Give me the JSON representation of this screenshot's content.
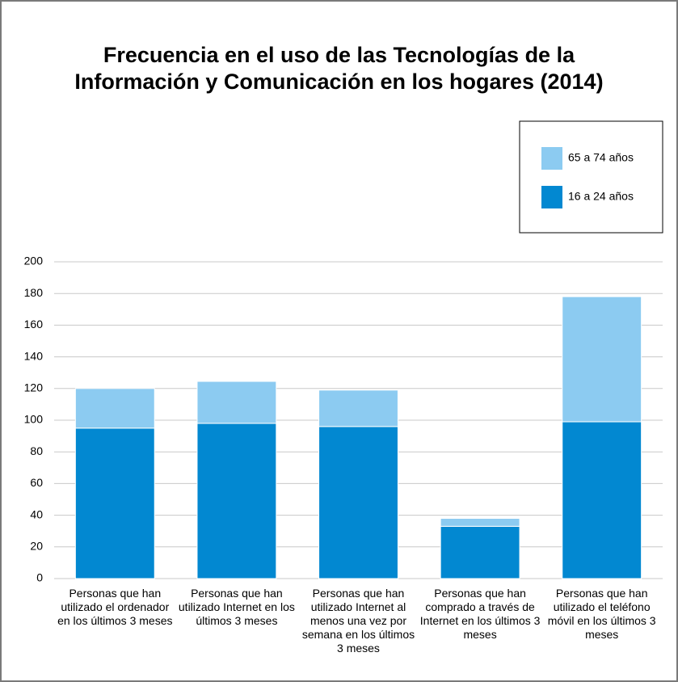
{
  "chart_data": {
    "type": "stacked_bar",
    "title": "Frecuencia en el uso de las Tecnologías de la Información y Comunicación en los hogares (2014)",
    "categories": [
      "Personas que han utilizado el ordenador en los últimos 3 meses",
      "Personas que han utilizado Internet en los últimos 3 meses",
      "Personas que han utilizado Internet al menos una vez por semana en los últimos 3 meses",
      "Personas que han comprado a través de Internet en los últimos 3 meses",
      "Personas que han utilizado el teléfono móvil en los últimos 3 meses"
    ],
    "series": [
      {
        "name": "16 a 24 años",
        "color": "#0288d1",
        "values": [
          95,
          98,
          96,
          33,
          99
        ]
      },
      {
        "name": "65 a 74 años",
        "color": "#8ccbf1",
        "values": [
          25,
          26.5,
          23,
          5,
          79
        ]
      }
    ],
    "ylim": [
      0,
      200
    ],
    "yticks": [
      0,
      20,
      40,
      60,
      80,
      100,
      120,
      140,
      160,
      180,
      200
    ],
    "grid": true,
    "legend": "top-right"
  }
}
